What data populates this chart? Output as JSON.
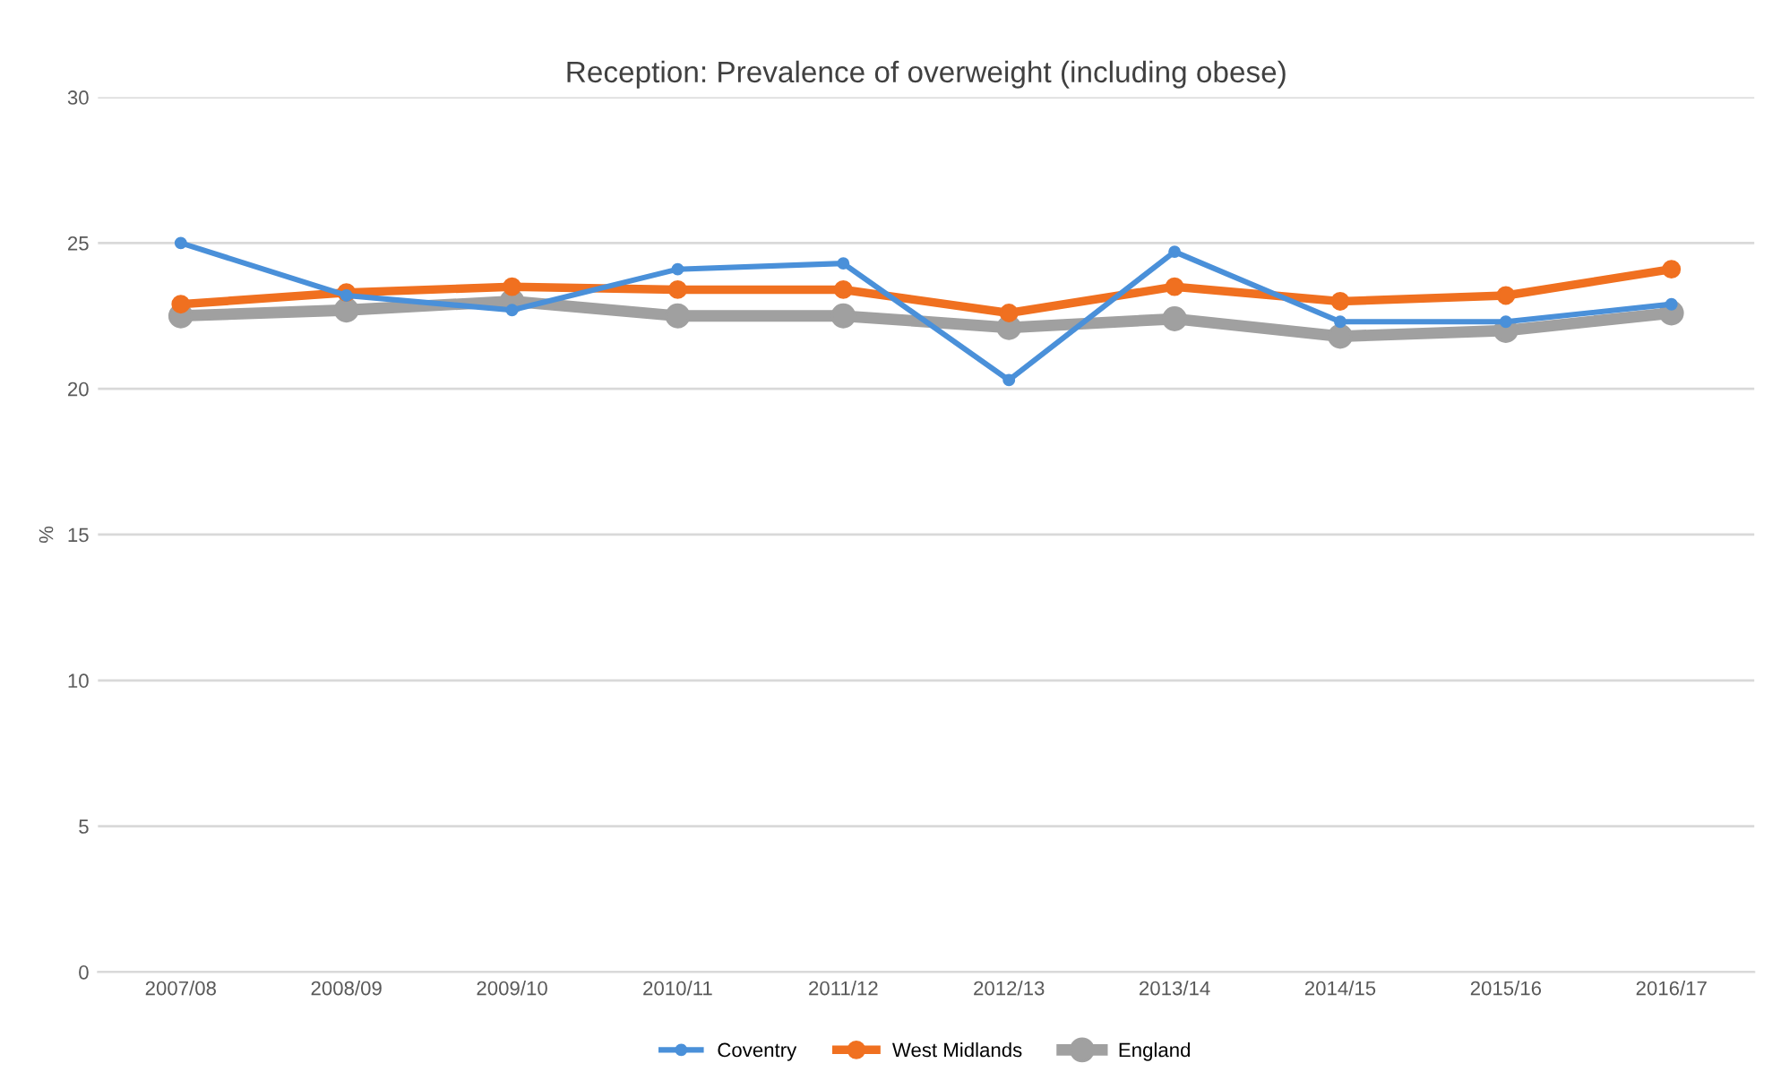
{
  "chart_data": {
    "type": "line",
    "title": "Reception: Prevalence of overweight (including obese)",
    "ylabel": "%",
    "categories": [
      "2007/08",
      "2008/09",
      "2009/10",
      "2010/11",
      "2011/12",
      "2012/13",
      "2013/14",
      "2014/15",
      "2015/16",
      "2016/17"
    ],
    "series": [
      {
        "name": "Coventry",
        "color": "#4a90d9",
        "values": [
          25.0,
          23.2,
          22.7,
          24.1,
          24.3,
          20.3,
          24.7,
          22.3,
          22.3,
          22.9
        ]
      },
      {
        "name": "West Midlands",
        "color": "#f07020",
        "values": [
          22.9,
          23.3,
          23.5,
          23.4,
          23.4,
          22.6,
          23.5,
          23.0,
          23.2,
          24.1
        ]
      },
      {
        "name": "England",
        "color": "#a0a0a0",
        "values": [
          22.5,
          22.7,
          23.0,
          22.5,
          22.5,
          22.1,
          22.4,
          21.8,
          22.0,
          22.6
        ]
      }
    ],
    "ylim": [
      0,
      30
    ],
    "yticks": [
      0,
      5,
      10,
      15,
      20,
      25,
      30
    ],
    "grid": "y",
    "legend": "bottom",
    "marker": "circle",
    "line_style": "solid"
  }
}
